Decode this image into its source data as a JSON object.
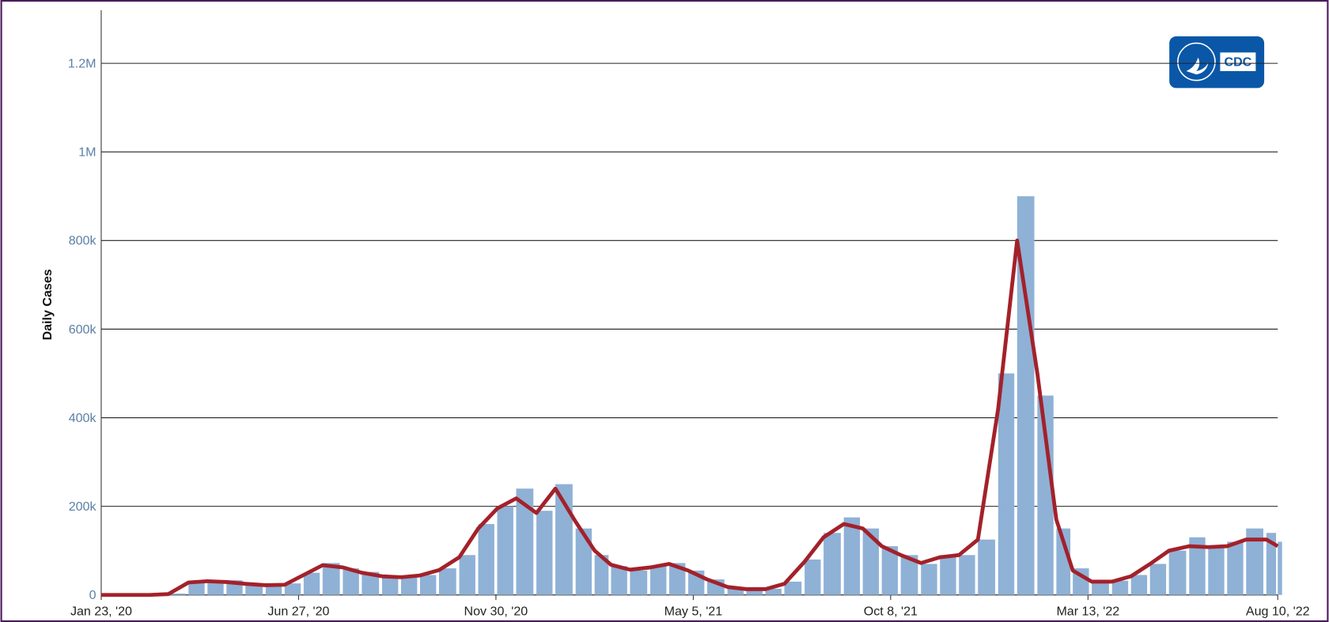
{
  "chart_data": {
    "type": "bar-line",
    "y_label": "Daily Cases",
    "logo_text": "CDC",
    "xlim": [
      "2020-01-23",
      "2022-08-10"
    ],
    "xticks": [
      {
        "value": "2020-01-23",
        "label": "Jan 23, '20"
      },
      {
        "value": "2020-06-27",
        "label": "Jun 27, '20"
      },
      {
        "value": "2020-11-30",
        "label": "Nov 30, '20"
      },
      {
        "value": "2021-05-05",
        "label": "May 5, '21"
      },
      {
        "value": "2021-10-08",
        "label": "Oct 8, '21"
      },
      {
        "value": "2022-03-13",
        "label": "Mar 13, '22"
      },
      {
        "value": "2022-08-10",
        "label": "Aug 10, '22"
      }
    ],
    "ylim": [
      0,
      1320000
    ],
    "yticks": [
      0,
      {
        "value": 200000,
        "label": "200k"
      },
      {
        "value": 400000,
        "label": "400k"
      },
      {
        "value": 600000,
        "label": "600k"
      },
      {
        "value": 800000,
        "label": "800k"
      },
      {
        "value": 1000000,
        "label": "1M"
      },
      {
        "value": 1200000,
        "label": "1.2M"
      }
    ],
    "grid": true,
    "x": [
      "2020-01-23",
      "2020-02-01",
      "2020-02-16",
      "2020-03-01",
      "2020-03-16",
      "2020-04-01",
      "2020-04-16",
      "2020-05-01",
      "2020-05-16",
      "2020-06-01",
      "2020-06-16",
      "2020-07-01",
      "2020-07-16",
      "2020-08-01",
      "2020-08-16",
      "2020-09-01",
      "2020-09-16",
      "2020-10-01",
      "2020-10-16",
      "2020-11-01",
      "2020-11-16",
      "2020-12-01",
      "2020-12-16",
      "2021-01-01",
      "2021-01-16",
      "2021-02-01",
      "2021-02-16",
      "2021-03-01",
      "2021-03-16",
      "2021-04-01",
      "2021-04-16",
      "2021-05-01",
      "2021-05-16",
      "2021-06-01",
      "2021-06-16",
      "2021-07-01",
      "2021-07-16",
      "2021-08-01",
      "2021-08-16",
      "2021-09-01",
      "2021-09-16",
      "2021-10-01",
      "2021-10-16",
      "2021-11-01",
      "2021-11-16",
      "2021-12-01",
      "2021-12-16",
      "2022-01-01",
      "2022-01-16",
      "2022-02-01",
      "2022-02-16",
      "2022-03-01",
      "2022-03-16",
      "2022-04-01",
      "2022-04-16",
      "2022-05-01",
      "2022-05-16",
      "2022-06-01",
      "2022-06-16",
      "2022-07-01",
      "2022-07-16",
      "2022-08-01",
      "2022-08-10"
    ],
    "series": [
      {
        "type": "bar",
        "color": "#8fb1d6",
        "values": [
          0,
          0,
          0,
          0,
          3000,
          32000,
          30000,
          33000,
          25000,
          22000,
          26000,
          50000,
          72000,
          60000,
          52000,
          42000,
          40000,
          45000,
          60000,
          90000,
          160000,
          200000,
          240000,
          190000,
          250000,
          150000,
          90000,
          65000,
          55000,
          65000,
          72000,
          55000,
          35000,
          16000,
          13000,
          14000,
          30000,
          80000,
          140000,
          175000,
          150000,
          110000,
          90000,
          70000,
          90000,
          90000,
          125000,
          500000,
          900000,
          450000,
          150000,
          60000,
          30000,
          32000,
          45000,
          70000,
          100000,
          130000,
          110000,
          120000,
          150000,
          140000,
          120000
        ]
      },
      {
        "type": "line",
        "color": "#a3212a",
        "values": [
          0,
          0,
          0,
          0,
          2000,
          28000,
          31000,
          29000,
          25000,
          22000,
          23000,
          45000,
          67000,
          62000,
          50000,
          42000,
          40000,
          44000,
          56000,
          85000,
          150000,
          195000,
          218000,
          185000,
          240000,
          165000,
          100000,
          68000,
          57000,
          62000,
          70000,
          55000,
          35000,
          18000,
          13000,
          13000,
          25000,
          75000,
          130000,
          160000,
          150000,
          110000,
          90000,
          72000,
          85000,
          90000,
          125000,
          420000,
          800000,
          500000,
          170000,
          55000,
          30000,
          30000,
          42000,
          70000,
          100000,
          110000,
          108000,
          110000,
          125000,
          125000,
          110000
        ]
      }
    ]
  }
}
